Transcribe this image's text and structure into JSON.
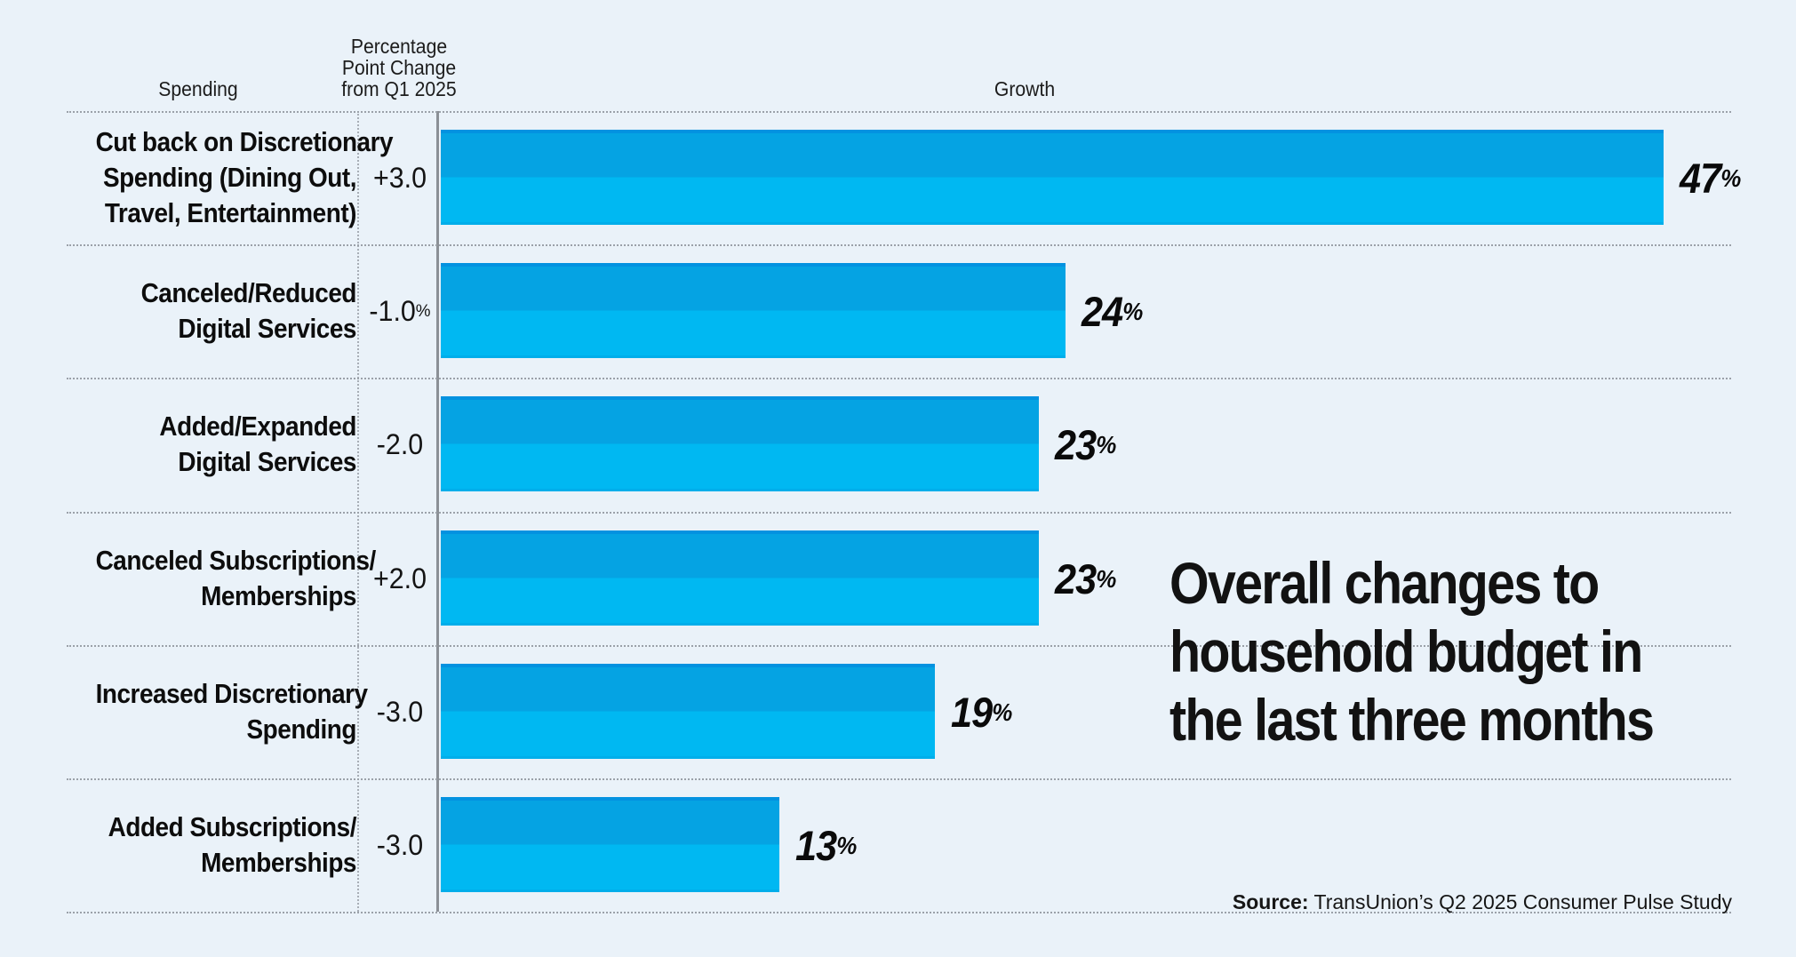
{
  "colors": {
    "background": "#eaf2f9",
    "bar_edge": "#0392e0",
    "bar_upper": "#05a3e3",
    "bar_lower": "#00b8f2",
    "bar_lower_edge": "#00aeea",
    "axis": "#8b9096",
    "grid_dotted": "#9ba1a9",
    "text": "#0d0d0d"
  },
  "header": {
    "spending": "Spending",
    "pct_change_lines": [
      "Percentage",
      "Point Change",
      "from Q1 2025"
    ],
    "growth": "Growth"
  },
  "title": "Overall changes to household budget in the last three months",
  "title_lines": [
    "Overall changes to",
    "household budget in",
    "the last three months"
  ],
  "source": {
    "label": "Source:",
    "text": "TransUnion’s Q2 2025 Consumer Pulse Study"
  },
  "chart_data": {
    "type": "bar",
    "orientation": "horizontal",
    "title": "Overall changes to household budget in the last three months",
    "xlabel": "Growth",
    "ylabel": "Spending",
    "xlim": [
      0,
      50
    ],
    "grid": "dotted row separators",
    "legend": "none",
    "categories": [
      "Cut back on Discretionary Spending (Dining Out, Travel, Entertainment)",
      "Canceled/Reduced Digital Services",
      "Added/Expanded Digital Services",
      "Canceled Subscriptions/Memberships",
      "Increased Discretionary Spending",
      "Added Subscriptions/Memberships"
    ],
    "values": [
      47,
      24,
      23,
      23,
      19,
      13
    ],
    "rows": [
      {
        "label_lines": [
          "Cut back on Discretionary",
          "Spending (Dining Out,",
          "Travel, Entertainment)"
        ],
        "pct_change": "+3.0",
        "growth_pct": 47,
        "growth_label": "47%"
      },
      {
        "label_lines": [
          "Canceled/Reduced",
          "Digital Services"
        ],
        "pct_change": "-1.0%",
        "growth_pct": 24,
        "growth_label": "24%"
      },
      {
        "label_lines": [
          "Added/Expanded",
          "Digital Services"
        ],
        "pct_change": "-2.0",
        "growth_pct": 23,
        "growth_label": "23%"
      },
      {
        "label_lines": [
          "Canceled Subscriptions/",
          "Memberships"
        ],
        "pct_change": "+2.0",
        "growth_pct": 23,
        "growth_label": "23%"
      },
      {
        "label_lines": [
          "Increased Discretionary",
          "Spending"
        ],
        "pct_change": "-3.0",
        "growth_pct": 19,
        "growth_label": "19%"
      },
      {
        "label_lines": [
          "Added Subscriptions/",
          "Memberships"
        ],
        "pct_change": "-3.0",
        "growth_pct": 13,
        "growth_label": "13%"
      }
    ],
    "pct_change_column_header": "Percentage Point Change from Q1 2025"
  }
}
